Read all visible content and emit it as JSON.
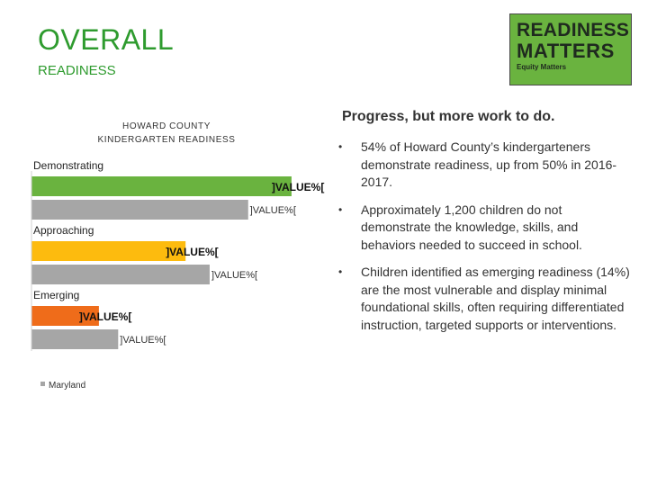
{
  "header": {
    "title": "OVERALL",
    "subtitle": "READINESS"
  },
  "logo": {
    "line1": "READINESS",
    "line2": "MATTERS",
    "line3": "Equity Matters",
    "color": "#6ab33f"
  },
  "chart_data": {
    "type": "bar",
    "orientation": "horizontal",
    "title_line1": "HOWARD COUNTY",
    "title_line2": "KINDERGARTEN READINESS",
    "categories": [
      "Demonstrating",
      "Approaching",
      "Emerging"
    ],
    "series": [
      {
        "name": "",
        "colors": [
          "#6ab33f",
          "#fdbb0e",
          "#ef6c1a"
        ],
        "values": [
          54,
          32,
          14
        ]
      },
      {
        "name": "Maryland",
        "color": "#a6a6a6",
        "values": [
          45,
          37,
          18
        ]
      }
    ],
    "data_labels": [
      "]VALUE%[",
      "]VALUE%[",
      "]VALUE%[",
      "]VALUE%[",
      "]VALUE%[",
      "]VALUE%["
    ],
    "xlim": [
      0,
      60
    ],
    "legend": "bottom-left",
    "grid": false
  },
  "panel": {
    "heading": "Progress, but more work to do.",
    "bullet_symbol": "•",
    "bullets": [
      "54% of Howard County’s kindergarteners demonstrate readiness, up from 50% in 2016-2017.",
      "Approximately 1,200 children do not demonstrate the knowledge, skills, and behaviors needed to succeed in school.",
      "Children identified as emerging readiness (14%) are the most vulnerable and display minimal foundational skills, often requiring differentiated instruction, targeted supports or interventions."
    ]
  }
}
